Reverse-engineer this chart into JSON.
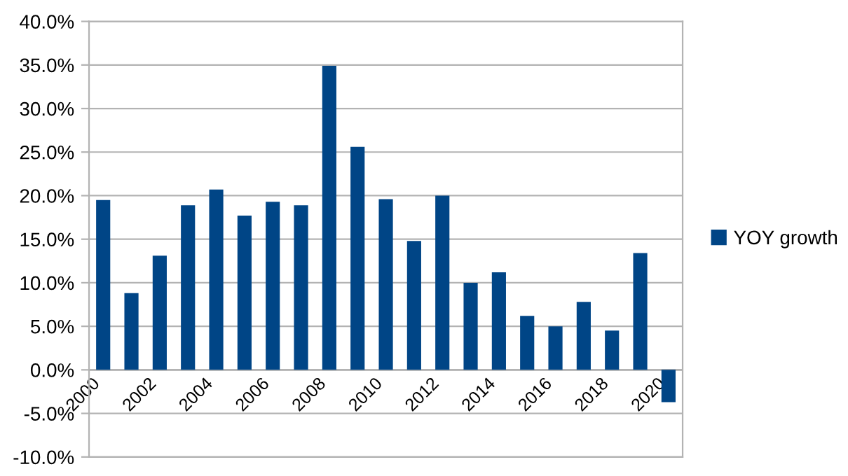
{
  "chart_data": {
    "type": "bar",
    "categories": [
      "2000",
      null,
      "2002",
      null,
      "2004",
      null,
      "2006",
      null,
      "2008",
      null,
      "2010",
      null,
      "2012",
      null,
      "2014",
      null,
      "2016",
      null,
      "2018",
      null,
      "2020"
    ],
    "series": [
      {
        "name": "YOY growth",
        "color": "#004586",
        "values": [
          19.5,
          8.8,
          13.1,
          18.9,
          20.7,
          17.7,
          19.3,
          18.9,
          34.9,
          25.6,
          19.6,
          14.8,
          20.0,
          10.0,
          11.2,
          6.2,
          5.0,
          7.8,
          4.5,
          13.4,
          -3.7
        ]
      }
    ],
    "ylim": [
      -10,
      40
    ],
    "yticks": [
      {
        "value": -10,
        "label": "-10.0%"
      },
      {
        "value": -5,
        "label": "-5.0%"
      },
      {
        "value": 0,
        "label": "0.0%"
      },
      {
        "value": 5,
        "label": "5.0%"
      },
      {
        "value": 10,
        "label": "10.0%"
      },
      {
        "value": 15,
        "label": "15.0%"
      },
      {
        "value": 20,
        "label": "20.0%"
      },
      {
        "value": 25,
        "label": "25.0%"
      },
      {
        "value": 30,
        "label": "30.0%"
      },
      {
        "value": 35,
        "label": "35.0%"
      },
      {
        "value": 40,
        "label": "40.0%"
      }
    ],
    "grid": "y",
    "legend": "right"
  }
}
